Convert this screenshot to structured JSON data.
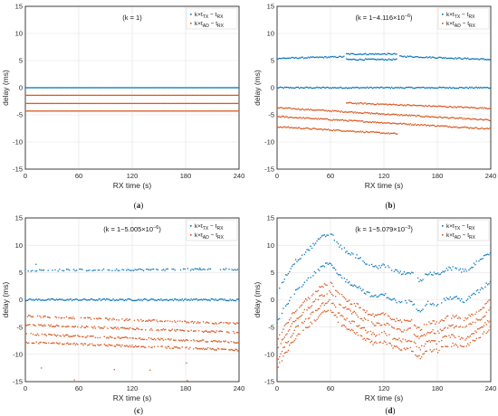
{
  "colors": {
    "blue": "#0072BD",
    "orange": "#D95319"
  },
  "chart_data": [
    {
      "type": "scatter",
      "panel": "(a)",
      "annotation": "(k = 1)",
      "xlabel": "RX time (s)",
      "ylabel": "delay (ms)",
      "xlim": [
        0,
        240
      ],
      "ylim": [
        -15,
        15
      ],
      "xticks": [
        "0",
        "60",
        "120",
        "180",
        "240"
      ],
      "yticks": [
        "15",
        "10",
        "5",
        "0",
        "-5",
        "-10",
        "-15"
      ],
      "grid": true,
      "legend_position": "top-right",
      "series": [
        {
          "name": "k×tTX − tRX",
          "color": "#0072BD",
          "levels": [
            0.0
          ]
        },
        {
          "name": "k×tAD − tRX",
          "color": "#D95319",
          "levels": [
            -1.4,
            -2.9,
            -4.3
          ]
        }
      ]
    },
    {
      "type": "scatter",
      "panel": "(b)",
      "annotation": "(k = 1−4.116×10−6)",
      "xlabel": "RX time (s)",
      "ylabel": "delay (ms)",
      "xlim": [
        0,
        240
      ],
      "ylim": [
        -15,
        15
      ],
      "xticks": [
        "0",
        "60",
        "120",
        "180",
        "240"
      ],
      "yticks": [
        "15",
        "10",
        "5",
        "0",
        "-5",
        "-10",
        "-15"
      ],
      "grid": true,
      "legend_position": "top-right",
      "series": [
        {
          "name": "k×tTX − tRX",
          "color": "#0072BD",
          "bands": [
            {
              "x": [
                0,
                240
              ],
              "y": [
                0.0,
                0.0
              ]
            },
            {
              "x": [
                0,
                75
              ],
              "y": [
                5.4,
                5.7
              ]
            },
            {
              "x": [
                78,
                135
              ],
              "y": [
                6.2,
                6.2
              ]
            },
            {
              "x": [
                78,
                135
              ],
              "y": [
                5.2,
                5.2
              ]
            },
            {
              "x": [
                138,
                240
              ],
              "y": [
                5.8,
                5.2
              ]
            }
          ]
        },
        {
          "name": "k×tAD − tRX",
          "color": "#D95319",
          "bands": [
            {
              "x": [
                0,
                240
              ],
              "y": [
                -3.7,
                -6.0
              ]
            },
            {
              "x": [
                0,
                240
              ],
              "y": [
                -5.3,
                -7.6
              ]
            },
            {
              "x": [
                0,
                135
              ],
              "y": [
                -7.2,
                -8.5
              ]
            },
            {
              "x": [
                78,
                240
              ],
              "y": [
                -2.8,
                -3.8
              ]
            }
          ]
        }
      ]
    },
    {
      "type": "scatter",
      "panel": "(c)",
      "annotation": "(k = 1−5.005×10−6)",
      "xlabel": "RX time (s)",
      "ylabel": "delay (ms)",
      "xlim": [
        0,
        240
      ],
      "ylim": [
        -15,
        15
      ],
      "xticks": [
        "0",
        "60",
        "120",
        "180",
        "240"
      ],
      "yticks": [
        "15",
        "10",
        "5",
        "0",
        "-5",
        "-10",
        "-15"
      ],
      "grid": true,
      "legend_position": "top-right",
      "series": [
        {
          "name": "k×tTX − tRX",
          "color": "#0072BD",
          "bands": [
            {
              "x": [
                0,
                240
              ],
              "y": [
                0.0,
                0.0
              ]
            },
            {
              "x": [
                0,
                240
              ],
              "y": [
                5.4,
                5.6
              ]
            }
          ]
        },
        {
          "name": "k×tAD − tRX",
          "color": "#D95319",
          "bands": [
            {
              "x": [
                0,
                240
              ],
              "y": [
                -3.0,
                -4.4
              ]
            },
            {
              "x": [
                0,
                240
              ],
              "y": [
                -4.6,
                -6.0
              ]
            },
            {
              "x": [
                0,
                240
              ],
              "y": [
                -6.3,
                -7.8
              ]
            },
            {
              "x": [
                0,
                240
              ],
              "y": [
                -7.8,
                -9.2
              ]
            }
          ]
        }
      ]
    },
    {
      "type": "scatter",
      "panel": "(d)",
      "annotation": "(k = 1−5.079×10−3)",
      "xlabel": "RX time (s)",
      "ylabel": "delay (ms)",
      "xlim": [
        0,
        240
      ],
      "ylim": [
        -15,
        15
      ],
      "xticks": [
        "0",
        "60",
        "120",
        "180",
        "240"
      ],
      "yticks": [
        "15",
        "10",
        "5",
        "0",
        "-5",
        "-10",
        "-15"
      ],
      "grid": true,
      "legend_position": "top-right",
      "series": [
        {
          "name": "k×tTX − tRX",
          "color": "#0072BD",
          "curve": {
            "x": [
              0,
              10,
              20,
              30,
              40,
              50,
              60,
              70,
              80,
              90,
              100,
              110,
              120,
              130,
              140,
              150,
              160,
              170,
              180,
              190,
              200,
              210,
              220,
              230,
              240
            ],
            "y": [
              -4,
              -1,
              1.5,
              3,
              4.5,
              6,
              6.8,
              4.5,
              3.2,
              2.5,
              1.3,
              0.5,
              1,
              0,
              -0.5,
              -0.3,
              -2,
              -0.5,
              -0.8,
              0.2,
              0.4,
              -0.2,
              0.9,
              2,
              3.5
            ]
          },
          "offsets": [
            0,
            5.4
          ]
        },
        {
          "name": "k×tAD − tRX",
          "color": "#D95319",
          "curve": {
            "x": [
              0,
              10,
              20,
              30,
              40,
              50,
              60,
              70,
              80,
              90,
              100,
              110,
              120,
              130,
              140,
              150,
              160,
              170,
              180,
              190,
              200,
              210,
              220,
              230,
              240
            ],
            "y": [
              -4,
              -1,
              1.5,
              3,
              4.5,
              6,
              6.8,
              4.5,
              3.2,
              2.5,
              1.3,
              0.5,
              1,
              0,
              -0.5,
              -0.3,
              -2,
              -0.5,
              -0.8,
              0.2,
              0.4,
              -0.2,
              0.9,
              2,
              3.5
            ]
          },
          "offsets": [
            -3.5,
            -5.2,
            -7.0,
            -8.6
          ]
        }
      ]
    }
  ]
}
